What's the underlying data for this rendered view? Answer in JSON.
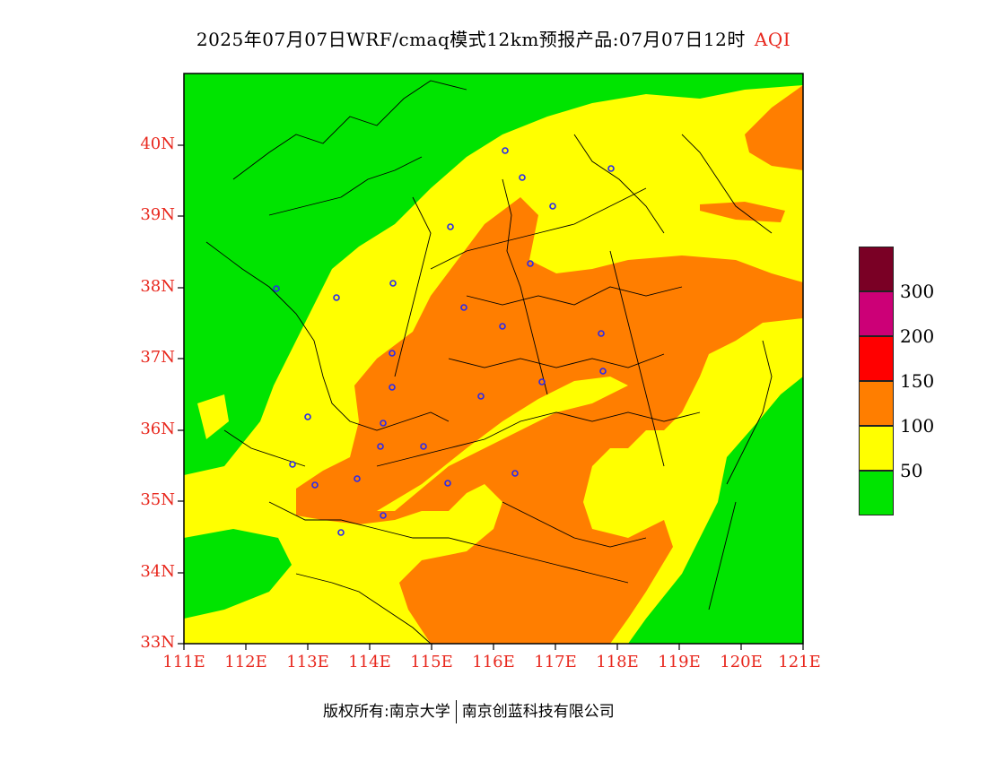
{
  "title": {
    "main": "2025年07月07日WRF/cmaq模式12km预报产品:07月07日12时",
    "variable": "AQI"
  },
  "map": {
    "lat_labels": [
      "40N",
      "39N",
      "38N",
      "37N",
      "36N",
      "35N",
      "34N",
      "33N"
    ],
    "lon_labels": [
      "111E",
      "112E",
      "113E",
      "114E",
      "115E",
      "116E",
      "117E",
      "118E",
      "119E",
      "120E",
      "121E"
    ]
  },
  "legend": {
    "items": [
      {
        "label": "300",
        "color": "#7a0025"
      },
      {
        "label": "200",
        "color": "#cc0077"
      },
      {
        "label": "150",
        "color": "#ff0000"
      },
      {
        "label": "100",
        "color": "#ff7e00"
      },
      {
        "label": "50",
        "color": "#ffff00"
      },
      {
        "label": "",
        "color": "#00e400"
      }
    ]
  },
  "footer": {
    "copyright": "版权所有:南京大学",
    "company": "南京创蓝科技有限公司"
  }
}
